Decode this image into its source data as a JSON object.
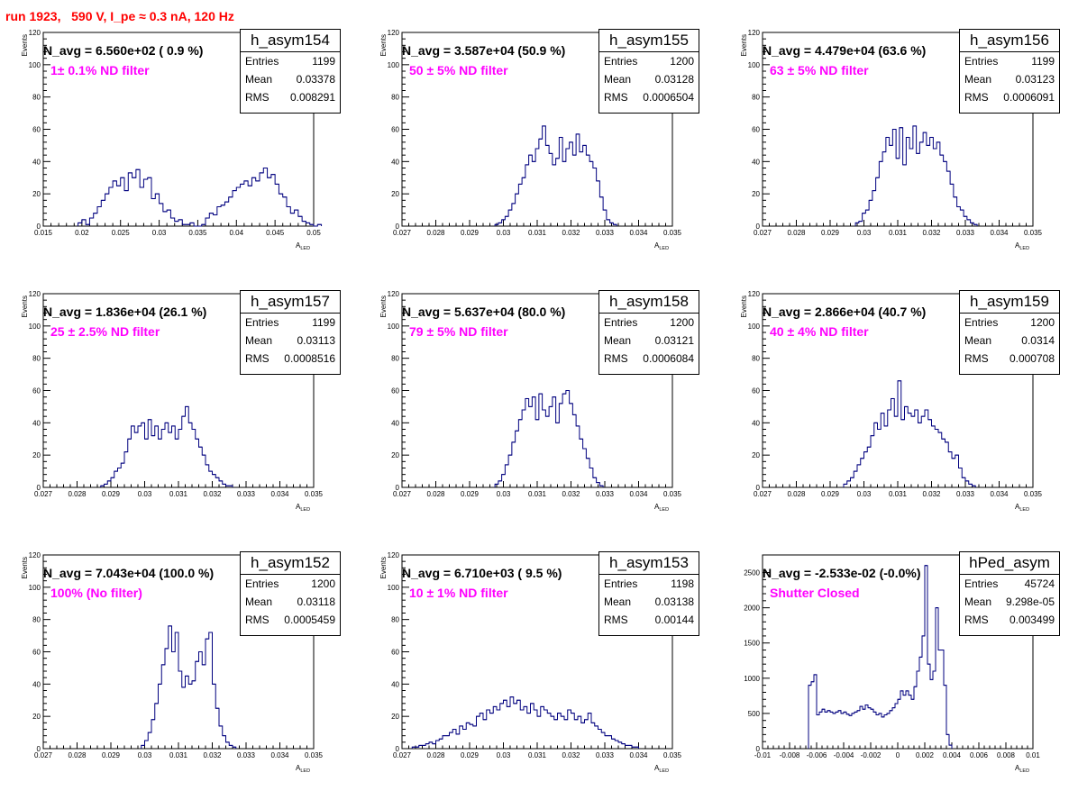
{
  "run_title": "run 1923,   590 V, I_pe ≈ 0.3 nA, 120 Hz",
  "colors": {
    "histogram_line": "#00007f",
    "title_text": "#ff0000",
    "filter_text": "#ff00ff"
  },
  "stat_labels": {
    "entries": "Entries",
    "mean": "Mean",
    "rms": "RMS"
  },
  "chart_data": [
    {
      "type": "histogram",
      "name": "h_asym154",
      "n_avg": "N_avg = 6.560e+02 ( 0.9 %)",
      "annotation": "1± 0.1% ND filter",
      "entries": "1199",
      "mean": "0.03378",
      "rms": "0.008291",
      "xlabel": "A",
      "xlabel_sub": "LED",
      "ylabel": "Events",
      "xlim": [
        0.015,
        0.05
      ],
      "ylim": [
        0,
        120
      ],
      "xticks": [
        "0.015",
        "0.02",
        "0.025",
        "0.03",
        "0.035",
        "0.04",
        "0.045",
        "0.05"
      ],
      "yticks": [
        "0",
        "20",
        "40",
        "60",
        "80",
        "100",
        "120"
      ],
      "bin_lo": 0.0195,
      "bin_width": 0.0005,
      "counts": [
        2,
        4,
        1,
        5,
        8,
        12,
        16,
        20,
        24,
        28,
        25,
        30,
        22,
        33,
        30,
        35,
        24,
        29,
        30,
        17,
        20,
        14,
        9,
        10,
        5,
        3,
        4,
        1,
        1,
        2,
        0,
        0,
        1,
        5,
        8,
        7,
        12,
        13,
        15,
        18,
        22,
        24,
        26,
        28,
        25,
        30,
        28,
        33,
        36,
        30,
        32,
        26,
        20,
        18,
        12,
        8,
        10,
        6,
        3,
        2,
        1,
        0,
        1
      ]
    },
    {
      "type": "histogram",
      "name": "h_asym155",
      "n_avg": "N_avg = 3.587e+04 (50.9 %)",
      "annotation": "50 ± 5% ND filter",
      "entries": "1200",
      "mean": "0.03128",
      "rms": "0.0006504",
      "xlabel": "A",
      "xlabel_sub": "LED",
      "ylabel": "Events",
      "xlim": [
        0.027,
        0.035
      ],
      "ylim": [
        0,
        120
      ],
      "xticks": [
        "0.027",
        "0.028",
        "0.029",
        "0.03",
        "0.031",
        "0.032",
        "0.033",
        "0.034",
        "0.035"
      ],
      "yticks": [
        "0",
        "20",
        "40",
        "60",
        "80",
        "100",
        "120"
      ],
      "bin_lo": 0.02975,
      "bin_width": 0.0001,
      "counts": [
        1,
        2,
        4,
        6,
        10,
        14,
        20,
        26,
        30,
        38,
        44,
        40,
        48,
        54,
        62,
        50,
        45,
        38,
        42,
        55,
        40,
        48,
        52,
        44,
        57,
        46,
        50,
        44,
        40,
        36,
        28,
        18,
        10,
        4,
        2,
        1
      ]
    },
    {
      "type": "histogram",
      "name": "h_asym156",
      "n_avg": "N_avg = 4.479e+04 (63.6 %)",
      "annotation": "63 ± 5% ND filter",
      "entries": "1199",
      "mean": "0.03123",
      "rms": "0.0006091",
      "xlabel": "A",
      "xlabel_sub": "LED",
      "ylabel": "Events",
      "xlim": [
        0.027,
        0.035
      ],
      "ylim": [
        0,
        120
      ],
      "xticks": [
        "0.027",
        "0.028",
        "0.029",
        "0.03",
        "0.031",
        "0.032",
        "0.033",
        "0.034",
        "0.035"
      ],
      "yticks": [
        "0",
        "20",
        "40",
        "60",
        "80",
        "100",
        "120"
      ],
      "bin_lo": 0.02975,
      "bin_width": 0.0001,
      "counts": [
        2,
        3,
        8,
        10,
        16,
        22,
        30,
        40,
        46,
        55,
        50,
        60,
        42,
        61,
        38,
        55,
        48,
        62,
        45,
        52,
        58,
        50,
        55,
        48,
        52,
        44,
        40,
        34,
        26,
        18,
        12,
        10,
        6,
        4,
        2,
        1
      ]
    },
    {
      "type": "histogram",
      "name": "h_asym157",
      "n_avg": "N_avg = 1.836e+04 (26.1 %)",
      "annotation": "25 ± 2.5% ND filter",
      "entries": "1199",
      "mean": "0.03113",
      "rms": "0.0008516",
      "xlabel": "A",
      "xlabel_sub": "LED",
      "ylabel": "Events",
      "xlim": [
        0.027,
        0.035
      ],
      "ylim": [
        0,
        120
      ],
      "xticks": [
        "0.027",
        "0.028",
        "0.029",
        "0.03",
        "0.031",
        "0.032",
        "0.033",
        "0.034",
        "0.035"
      ],
      "yticks": [
        "0",
        "20",
        "40",
        "60",
        "80",
        "100",
        "120"
      ],
      "bin_lo": 0.0287,
      "bin_width": 0.0001,
      "counts": [
        1,
        2,
        4,
        6,
        10,
        12,
        15,
        22,
        30,
        38,
        34,
        38,
        40,
        30,
        42,
        32,
        38,
        30,
        36,
        40,
        34,
        38,
        30,
        36,
        44,
        50,
        40,
        36,
        30,
        25,
        20,
        14,
        10,
        8,
        6,
        4,
        2,
        1,
        1
      ]
    },
    {
      "type": "histogram",
      "name": "h_asym158",
      "n_avg": "N_avg = 5.637e+04 (80.0 %)",
      "annotation": "79 ± 5% ND filter",
      "entries": "1200",
      "mean": "0.03121",
      "rms": "0.0006084",
      "xlabel": "A",
      "xlabel_sub": "LED",
      "ylabel": "Events",
      "xlim": [
        0.027,
        0.035
      ],
      "ylim": [
        0,
        120
      ],
      "xticks": [
        "0.027",
        "0.028",
        "0.029",
        "0.03",
        "0.031",
        "0.032",
        "0.033",
        "0.034",
        "0.035"
      ],
      "yticks": [
        "0",
        "20",
        "40",
        "60",
        "80",
        "100",
        "120"
      ],
      "bin_lo": 0.02975,
      "bin_width": 0.0001,
      "counts": [
        2,
        4,
        8,
        14,
        20,
        28,
        35,
        42,
        48,
        55,
        50,
        56,
        42,
        58,
        48,
        44,
        50,
        56,
        40,
        52,
        58,
        60,
        52,
        45,
        38,
        30,
        24,
        18,
        12,
        6,
        3,
        1
      ]
    },
    {
      "type": "histogram",
      "name": "h_asym159",
      "n_avg": "N_avg = 2.866e+04 (40.7 %)",
      "annotation": "40 ± 4% ND filter",
      "entries": "1200",
      "mean": "0.0314",
      "rms": "0.000708",
      "xlabel": "A",
      "xlabel_sub": "LED",
      "ylabel": "Events",
      "xlim": [
        0.027,
        0.035
      ],
      "ylim": [
        0,
        120
      ],
      "xticks": [
        "0.027",
        "0.028",
        "0.029",
        "0.03",
        "0.031",
        "0.032",
        "0.033",
        "0.034",
        "0.035"
      ],
      "yticks": [
        "0",
        "20",
        "40",
        "60",
        "80",
        "100",
        "120"
      ],
      "bin_lo": 0.0294,
      "bin_width": 0.0001,
      "counts": [
        2,
        4,
        6,
        10,
        14,
        18,
        22,
        25,
        32,
        40,
        36,
        46,
        38,
        48,
        55,
        44,
        66,
        42,
        50,
        46,
        44,
        48,
        40,
        44,
        48,
        42,
        38,
        36,
        34,
        30,
        28,
        22,
        18,
        20,
        12,
        6,
        4,
        2,
        1
      ]
    },
    {
      "type": "histogram",
      "name": "h_asym152",
      "n_avg": "N_avg = 7.043e+04 (100.0 %)",
      "annotation": "100% (No filter)",
      "entries": "1200",
      "mean": "0.03118",
      "rms": "0.0005459",
      "xlabel": "A",
      "xlabel_sub": "LED",
      "ylabel": "Events",
      "xlim": [
        0.027,
        0.035
      ],
      "ylim": [
        0,
        120
      ],
      "xticks": [
        "0.027",
        "0.028",
        "0.029",
        "0.03",
        "0.031",
        "0.032",
        "0.033",
        "0.034",
        "0.035"
      ],
      "yticks": [
        "0",
        "20",
        "40",
        "60",
        "80",
        "100",
        "120"
      ],
      "bin_lo": 0.0299,
      "bin_width": 0.0001,
      "counts": [
        2,
        5,
        10,
        18,
        28,
        40,
        52,
        62,
        76,
        60,
        72,
        48,
        38,
        45,
        40,
        42,
        54,
        60,
        52,
        68,
        72,
        40,
        25,
        14,
        8,
        4,
        2,
        1
      ]
    },
    {
      "type": "histogram",
      "name": "h_asym153",
      "n_avg": "N_avg = 6.710e+03 ( 9.5 %)",
      "annotation": "10 ± 1% ND filter",
      "entries": "1198",
      "mean": "0.03138",
      "rms": "0.00144",
      "xlabel": "A",
      "xlabel_sub": "LED",
      "ylabel": "Events",
      "xlim": [
        0.027,
        0.035
      ],
      "ylim": [
        0,
        120
      ],
      "xticks": [
        "0.027",
        "0.028",
        "0.029",
        "0.03",
        "0.031",
        "0.032",
        "0.033",
        "0.034",
        "0.035"
      ],
      "yticks": [
        "0",
        "20",
        "40",
        "60",
        "80",
        "100",
        "120"
      ],
      "bin_lo": 0.0273,
      "bin_width": 0.0001,
      "counts": [
        1,
        1,
        2,
        2,
        3,
        4,
        3,
        5,
        6,
        8,
        8,
        10,
        12,
        9,
        14,
        12,
        16,
        15,
        14,
        20,
        22,
        18,
        24,
        22,
        26,
        24,
        28,
        30,
        26,
        32,
        28,
        30,
        24,
        26,
        22,
        28,
        24,
        20,
        26,
        24,
        22,
        20,
        18,
        22,
        20,
        18,
        24,
        22,
        18,
        20,
        16,
        18,
        22,
        16,
        14,
        12,
        10,
        8,
        8,
        6,
        5,
        4,
        3,
        2,
        2,
        1,
        1
      ]
    },
    {
      "type": "histogram",
      "name": "hPed_asym",
      "n_avg": "N_avg = -2.533e-02 (-0.0%)",
      "annotation": "Shutter Closed",
      "entries": "45724",
      "mean": "9.298e-05",
      "rms": "0.003499",
      "xlabel": "A",
      "xlabel_sub": "LED",
      "ylabel": "",
      "xlim": [
        -0.01,
        0.01
      ],
      "ylim": [
        0,
        2750
      ],
      "xticks": [
        "-0.01",
        "-0.008",
        "-0.006",
        "-0.004",
        "-0.002",
        "0",
        "0.002",
        "0.004",
        "0.006",
        "0.008",
        "0.01"
      ],
      "yticks": [
        "0",
        "500",
        "1000",
        "1500",
        "2000",
        "2500"
      ],
      "bin_lo": -0.0066,
      "bin_width": 0.0002,
      "counts": [
        900,
        950,
        1050,
        480,
        520,
        560,
        520,
        540,
        520,
        500,
        520,
        540,
        500,
        520,
        490,
        470,
        500,
        520,
        540,
        600,
        560,
        620,
        580,
        560,
        520,
        480,
        500,
        450,
        480,
        500,
        540,
        580,
        640,
        700,
        820,
        760,
        820,
        760,
        700,
        880,
        1100,
        1300,
        1600,
        2600,
        1200,
        980,
        1100,
        2000,
        1400,
        1400,
        900,
        200,
        50
      ]
    }
  ]
}
